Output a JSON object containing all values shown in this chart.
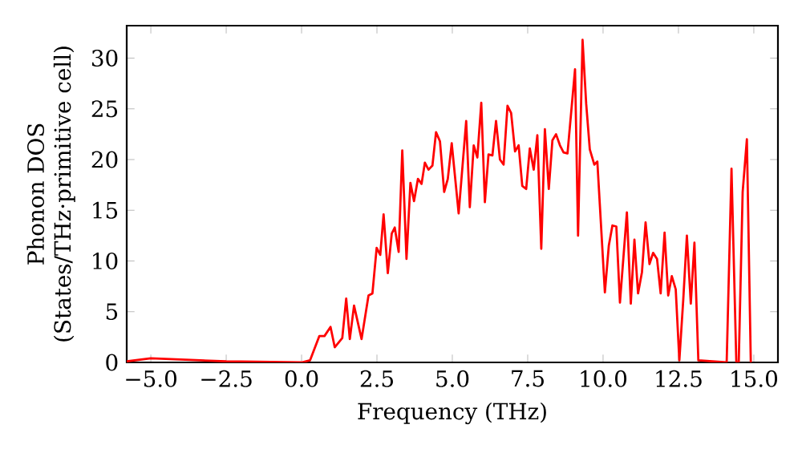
{
  "chart_data": {
    "type": "line",
    "xlabel": "Frequency (THz)",
    "ylabel": "Phonon DOS\n(States/THz·primitive cell)",
    "xlim": [
      -5.8,
      15.8
    ],
    "ylim": [
      0,
      33.2
    ],
    "xticks": [
      {
        "value": -5,
        "label": "−5.0"
      },
      {
        "value": -2.5,
        "label": "−2.5"
      },
      {
        "value": 0,
        "label": "0.0"
      },
      {
        "value": 2.5,
        "label": "2.5"
      },
      {
        "value": 5,
        "label": "5.0"
      },
      {
        "value": 7.5,
        "label": "7.5"
      },
      {
        "value": 10,
        "label": "10.0"
      },
      {
        "value": 12.5,
        "label": "12.5"
      },
      {
        "value": 15,
        "label": "15.0"
      }
    ],
    "yticks": [
      0,
      5,
      10,
      15,
      20,
      25,
      30
    ],
    "marker": "none",
    "line_style": "solid",
    "x": [
      -5.8,
      -5.0,
      -2.5,
      0,
      0.28,
      0.59,
      0.76,
      0.96,
      1.1,
      1.35,
      1.48,
      1.6,
      1.74,
      1.99,
      2.22,
      2.35,
      2.49,
      2.61,
      2.72,
      2.86,
      2.99,
      3.09,
      3.22,
      3.34,
      3.48,
      3.61,
      3.73,
      3.86,
      3.98,
      4.09,
      4.21,
      4.34,
      4.46,
      4.59,
      4.73,
      4.85,
      4.98,
      5.21,
      5.46,
      5.58,
      5.71,
      5.83,
      5.96,
      6.08,
      6.2,
      6.33,
      6.45,
      6.58,
      6.7,
      6.83,
      6.95,
      7.08,
      7.2,
      7.32,
      7.45,
      7.57,
      7.7,
      7.82,
      7.95,
      8.07,
      8.2,
      8.32,
      8.44,
      8.57,
      8.69,
      8.82,
      9.07,
      9.17,
      9.32,
      9.44,
      9.56,
      9.71,
      9.81,
      10.06,
      10.19,
      10.31,
      10.44,
      10.56,
      10.79,
      10.92,
      11.04,
      11.16,
      11.29,
      11.41,
      11.54,
      11.66,
      11.79,
      11.91,
      12.04,
      12.16,
      12.28,
      12.41,
      12.53,
      12.66,
      12.78,
      12.91,
      13.03,
      13.16,
      14.1,
      14.26,
      14.42,
      14.5,
      14.63,
      14.77,
      14.9
    ],
    "series": [
      {
        "color": "#ff0000",
        "values": [
          0.1,
          0.4,
          0.1,
          0,
          0.2,
          2.6,
          2.6,
          3.5,
          1.5,
          2.4,
          6.3,
          2.3,
          5.6,
          2.3,
          6.6,
          6.8,
          11.3,
          10.6,
          14.6,
          8.8,
          12.7,
          13.3,
          10.9,
          20.9,
          10.2,
          17.7,
          15.9,
          18.1,
          17.6,
          19.7,
          19.0,
          19.4,
          22.7,
          21.8,
          16.8,
          18.1,
          21.6,
          14.7,
          23.8,
          15.3,
          21.4,
          20.2,
          25.6,
          15.8,
          20.5,
          20.4,
          23.8,
          20.0,
          19.5,
          25.3,
          24.6,
          20.8,
          21.4,
          17.4,
          17.1,
          21.1,
          19.0,
          22.4,
          11.2,
          23.0,
          17.1,
          21.9,
          22.5,
          21.4,
          20.7,
          20.6,
          28.9,
          12.5,
          31.8,
          25.5,
          21.0,
          19.5,
          19.8,
          6.9,
          11.5,
          13.5,
          13.4,
          5.9,
          14.8,
          5.8,
          12.1,
          6.8,
          8.9,
          13.8,
          9.7,
          10.8,
          10.2,
          6.8,
          12.8,
          6.6,
          8.5,
          7.2,
          0.2,
          6.2,
          12.5,
          5.8,
          11.8,
          0.2,
          0,
          19.1,
          0,
          0,
          16.8,
          22.0,
          0
        ]
      }
    ]
  }
}
